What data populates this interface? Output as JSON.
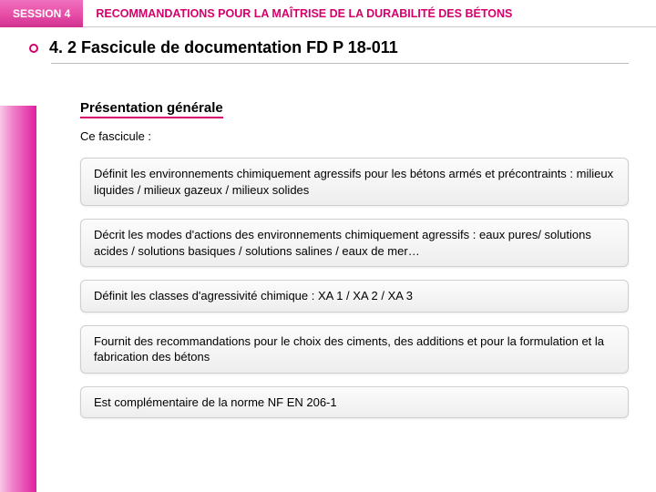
{
  "header": {
    "session_label": "SESSION 4",
    "main_title": "RECOMMANDATIONS POUR LA MAÎTRISE DE LA DURABILITÉ DES BÉTONS"
  },
  "title": "4. 2 Fascicule de documentation FD P 18-011",
  "subheading": "Présentation générale",
  "intro": "Ce fascicule :",
  "boxes": [
    "Définit les environnements chimiquement agressifs pour les bétons armés et précontraints : milieux liquides / milieux gazeux / milieux solides",
    "Décrit les modes d'actions des environnements chimiquement agressifs : eaux pures/ solutions acides / solutions basiques / solutions salines / eaux de mer…",
    "Définit les classes d'agressivité chimique : XA 1 / XA 2 / XA 3",
    "Fournit des recommandations pour le choix des ciments, des additions et pour la formulation et la fabrication des bétons",
    "Est complémentaire de la norme NF EN 206-1"
  ],
  "colors": {
    "brand": "#d6006c",
    "accent_gradient_start": "#f8c8e8",
    "accent_gradient_end": "#e020a0",
    "box_border": "#cfcfcf",
    "box_bg_top": "#fcfcfc",
    "box_bg_bottom": "#eeeeee"
  }
}
